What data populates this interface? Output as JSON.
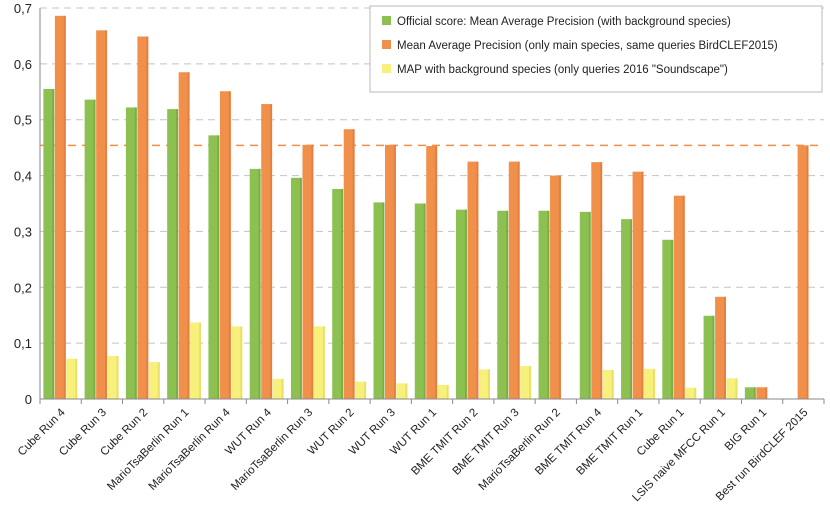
{
  "chart_data": {
    "type": "bar",
    "categories": [
      "Cube Run 4",
      "Cube Run 3",
      "Cube Run 2",
      "MarioTsaBerlin Run 1",
      "MarioTsaBerlin Run 4",
      "WUT Run 4",
      "MarioTsaBerlin Run 3",
      "WUT Run 2",
      "WUT Run 3",
      "WUT Run 1",
      "BME TMIT Run 2",
      "BME TMIT Run 3",
      "MarioTsaBerlin Run 2",
      "BME TMIT Run 4",
      "BME TMIT Run 1",
      "Cube Run 1",
      "LSIS naive MFCC Run 1",
      "BIG Run 1",
      "Best run BirdCLEF 2015"
    ],
    "series": [
      {
        "name": "Official score: Mean Average Precision (with background species)",
        "color": "#8cc152",
        "values": [
          0.555,
          0.536,
          0.522,
          0.519,
          0.472,
          0.412,
          0.396,
          0.376,
          0.352,
          0.35,
          0.339,
          0.337,
          0.337,
          0.335,
          0.322,
          0.285,
          0.149,
          0.021,
          null
        ]
      },
      {
        "name": "Mean Average Precision (only main species, same queries BirdCLEF2015)",
        "color": "#f0904a",
        "values": [
          0.686,
          0.66,
          0.649,
          0.585,
          0.551,
          0.528,
          0.455,
          0.483,
          0.455,
          0.453,
          0.425,
          0.425,
          0.4,
          0.424,
          0.407,
          0.364,
          0.183,
          0.021,
          0.454
        ]
      },
      {
        "name": "MAP with background species (only queries 2016 \"Soundscape\")",
        "color": "#f7f07a",
        "values": [
          0.072,
          0.077,
          0.066,
          0.137,
          0.13,
          0.036,
          0.13,
          0.031,
          0.028,
          0.025,
          0.053,
          0.059,
          null,
          0.052,
          0.054,
          0.02,
          0.037,
          null,
          null
        ]
      }
    ],
    "reference_line": {
      "value": 0.454,
      "color": "#f0904a",
      "style": "dashed"
    },
    "ylim": [
      0,
      0.7
    ],
    "yticks": [
      "0",
      "0,1",
      "0,2",
      "0,3",
      "0,4",
      "0,5",
      "0,6",
      "0,7"
    ],
    "grid": true,
    "legend_position": "top-right"
  }
}
